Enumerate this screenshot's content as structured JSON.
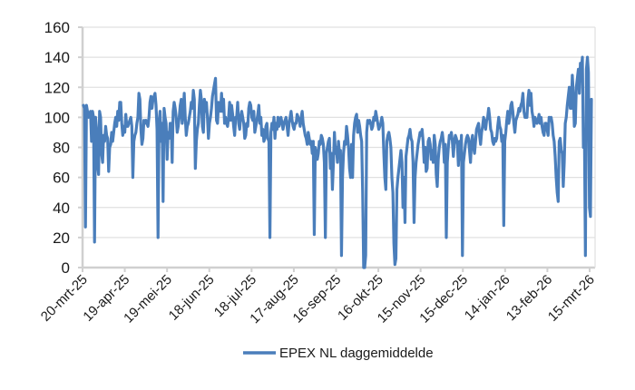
{
  "chart_data": {
    "type": "line",
    "title": "",
    "xlabel": "",
    "ylabel": "",
    "ylim": [
      0,
      160
    ],
    "yticks": [
      0,
      20,
      40,
      60,
      80,
      100,
      120,
      140,
      160
    ],
    "grid": true,
    "legend_position": "bottom",
    "x_start": "20-mrt-25",
    "x_end": "16-mrt-26",
    "x_tick_labels": [
      "20-mrt-25",
      "19-apr-25",
      "19-mei-25",
      "18-jun-25",
      "18-jul-25",
      "17-aug-25",
      "16-sep-25",
      "16-okt-25",
      "15-nov-25",
      "15-dec-25",
      "14-jan-26",
      "13-feb-26",
      "15-mrt-26"
    ],
    "series": [
      {
        "name": "EPEX NL daggemiddelde",
        "color": "#4a7ebb",
        "values": [
          108,
          106,
          27,
          108,
          104,
          100,
          102,
          104,
          84,
          104,
          100,
          17,
          100,
          92,
          68,
          62,
          104,
          100,
          76,
          70,
          88,
          84,
          94,
          88,
          86,
          64,
          80,
          82,
          90,
          84,
          90,
          96,
          100,
          94,
          104,
          98,
          110,
          110,
          96,
          88,
          94,
          90,
          102,
          94,
          94,
          96,
          98,
          100,
          94,
          60,
          84,
          88,
          90,
          96,
          100,
          116,
          112,
          92,
          82,
          86,
          98,
          96,
          98,
          96,
          94,
          100,
          110,
          114,
          106,
          112,
          114,
          116,
          108,
          92,
          20,
          96,
          104,
          84,
          96,
          44,
          106,
          100,
          96,
          72,
          90,
          86,
          96,
          96,
          70,
          104,
          110,
          106,
          100,
          90,
          94,
          100,
          108,
          112,
          96,
          104,
          116,
          100,
          88,
          94,
          96,
          100,
          104,
          110,
          106,
          118,
          112,
          66,
          84,
          92,
          96,
          108,
          118,
          112,
          94,
          90,
          112,
          104,
          110,
          100,
          86,
          96,
          100,
          106,
          114,
          118,
          122,
          126,
          98,
          96,
          110,
          108,
          104,
          116,
          104,
          112,
          96,
          100,
          96,
          94,
          100,
          110,
          98,
          108,
          102,
          94,
          88,
          100,
          100,
          110,
          96,
          92,
          100,
          104,
          100,
          96,
          86,
          88,
          96,
          94,
          106,
          110,
          108,
          100,
          98,
          104,
          90,
          94,
          98,
          102,
          108,
          96,
          100,
          88,
          92,
          84,
          86,
          94,
          96,
          86,
          84,
          20,
          90,
          96,
          92,
          100,
          86,
          96,
          92,
          100,
          94,
          98,
          100,
          96,
          92,
          96,
          98,
          100,
          94,
          88,
          96,
          100,
          104,
          98,
          94,
          92,
          96,
          96,
          102,
          100,
          98,
          94,
          100,
          104,
          96,
          92,
          88,
          86,
          82,
          90,
          86,
          82,
          84,
          76,
          84,
          22,
          80,
          76,
          72,
          76,
          84,
          82,
          88,
          86,
          82,
          70,
          20,
          76,
          80,
          84,
          86,
          66,
          76,
          52,
          70,
          90,
          76,
          80,
          70,
          84,
          76,
          78,
          8,
          60,
          76,
          84,
          82,
          94,
          88,
          80,
          66,
          60,
          82,
          60,
          88,
          96,
          100,
          102,
          90,
          98,
          94,
          88,
          84,
          50,
          0,
          0,
          8,
          90,
          98,
          96,
          98,
          96,
          92,
          94,
          100,
          98,
          104,
          100,
          96,
          92,
          94,
          96,
          100,
          96,
          76,
          60,
          52,
          84,
          88,
          90,
          86,
          80,
          60,
          50,
          16,
          2,
          6,
          52,
          60,
          66,
          72,
          78,
          70,
          40,
          60,
          30,
          74,
          80,
          86,
          88,
          92,
          86,
          84,
          70,
          30,
          60,
          70,
          76,
          82,
          86,
          90,
          88,
          92,
          84,
          70,
          80,
          64,
          66,
          84,
          86,
          82,
          72,
          78,
          70,
          88,
          82,
          62,
          54,
          72,
          80,
          84,
          86,
          90,
          84,
          70,
          82,
          20,
          70,
          80,
          88,
          86,
          90,
          84,
          74,
          84,
          88,
          86,
          82,
          68,
          84,
          72,
          88,
          8,
          70,
          76,
          82,
          86,
          88,
          86,
          78,
          70,
          84,
          88,
          80,
          76,
          84,
          92,
          94,
          96,
          88,
          82,
          90,
          94,
          100,
          96,
          92,
          98,
          100,
          106,
          100,
          92,
          90,
          84,
          82,
          86,
          84,
          86,
          94,
          100,
          94,
          92,
          84,
          88,
          28,
          84,
          90,
          98,
          104,
          96,
          100,
          108,
          110,
          104,
          96,
          90,
          98,
          100,
          102,
          106,
          104,
          108,
          110,
          116,
          104,
          100,
          100,
          100,
          112,
          118,
          108,
          116,
          104,
          100,
          94,
          100,
          98,
          96,
          98,
          102,
          96,
          100,
          94,
          90,
          88,
          96,
          96,
          92,
          88,
          100,
          98,
          100,
          96,
          88,
          84,
          74,
          60,
          50,
          44,
          84,
          86,
          78,
          76,
          54,
          70,
          96,
          100,
          108,
          114,
          120,
          106,
          106,
          128,
          116,
          94,
          96,
          120,
          126,
          132,
          116,
          136,
          132,
          140,
          80,
          92,
          8,
          132,
          140,
          130,
          40,
          34,
          112
        ]
      }
    ]
  },
  "legend": {
    "label": "EPEX NL daggemiddelde"
  }
}
